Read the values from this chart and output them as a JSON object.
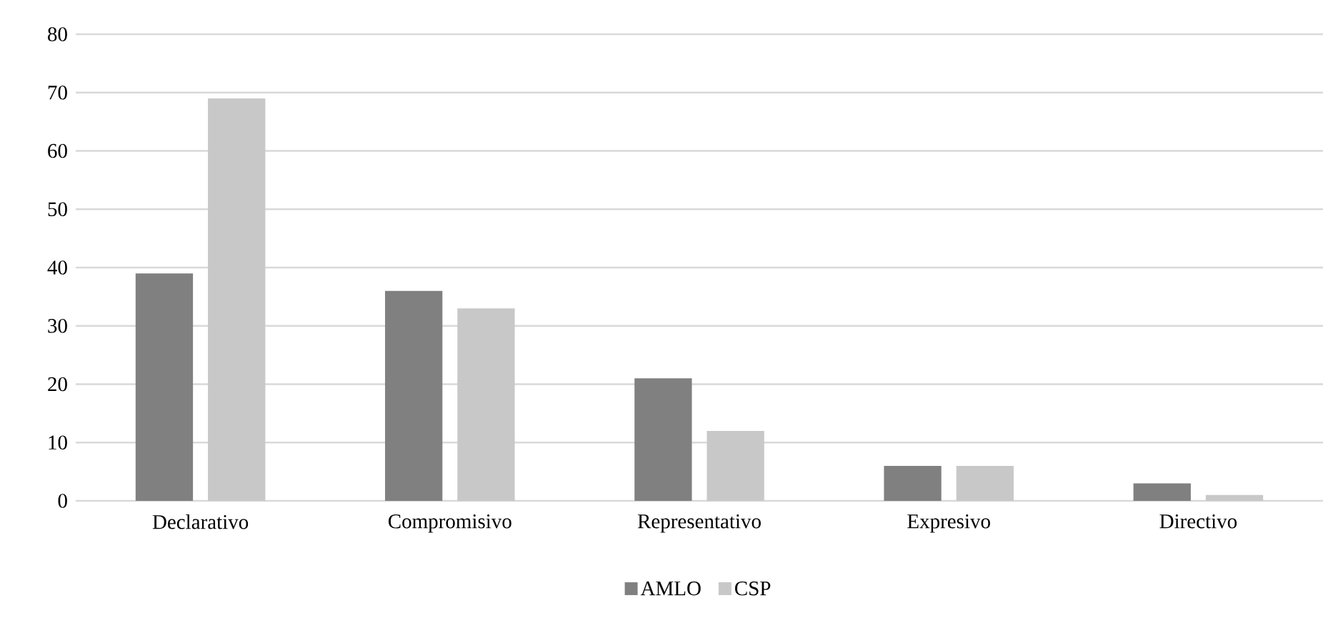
{
  "chart_data": {
    "type": "bar",
    "categories": [
      "Declarativo",
      "Compromisivo",
      "Representativo",
      "Expresivo",
      "Directivo"
    ],
    "series": [
      {
        "name": "AMLO",
        "color": "#808080",
        "values": [
          39,
          36,
          21,
          6,
          3
        ]
      },
      {
        "name": "CSP",
        "color": "#c8c8c8",
        "values": [
          69,
          33,
          12,
          6,
          1
        ]
      }
    ],
    "ylim": [
      0,
      80
    ],
    "yticks": [
      0,
      10,
      20,
      30,
      40,
      50,
      60,
      70,
      80
    ],
    "grid": "y",
    "legend": "bottom"
  }
}
